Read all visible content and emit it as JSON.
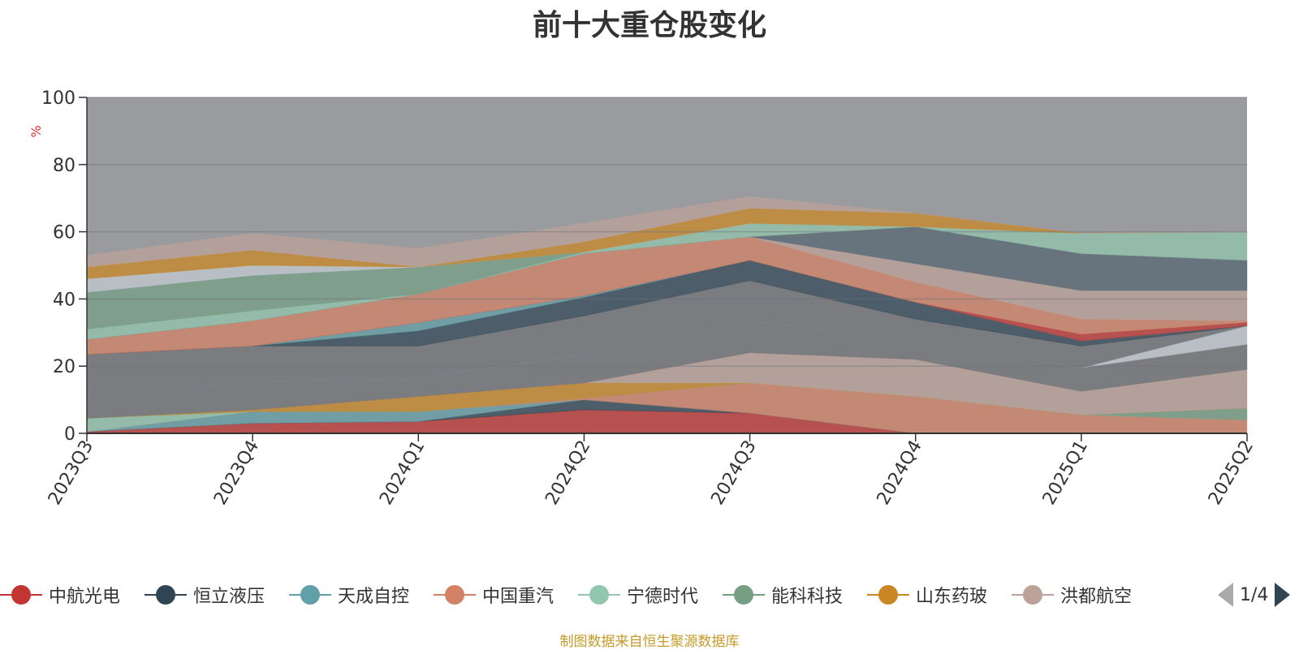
{
  "title": "前十大重仓股变化",
  "source": "制图数据来自恒生聚源数据库",
  "pager": {
    "text": "1/4"
  },
  "colors": {
    "axis": "#333333",
    "grid": "#6e7079",
    "background_area": "#9a9b9f",
    "ylabel": "#e52e2e"
  },
  "chart_data": {
    "type": "area",
    "title": "前十大重仓股变化",
    "ylabel": "%",
    "xlabel": "",
    "categories": [
      "2023Q3",
      "2023Q4",
      "2024Q1",
      "2024Q2",
      "2024Q3",
      "2024Q4",
      "2025Q1",
      "2025Q2"
    ],
    "ylim": [
      0,
      100
    ],
    "yticks": [
      0,
      20,
      40,
      60,
      80,
      100
    ],
    "grid": true,
    "stacked": true,
    "series_note": "Each band is one stock's holding share; legend shows first page of series",
    "series": [
      {
        "name": "中航光电",
        "color": "#c23531",
        "values": [
          0.5,
          3.0,
          3.5,
          7.0,
          6.0,
          0.0,
          0.0,
          0.0
        ]
      },
      {
        "name": "恒立液压",
        "color": "#2f4554",
        "values": [
          0.0,
          0.0,
          0.0,
          3.0,
          0.0,
          0.0,
          0.0,
          0.0
        ]
      },
      {
        "name": "天成自控",
        "color": "#61a0a8",
        "values": [
          0.0,
          3.5,
          3.0,
          0.0,
          0.0,
          0.0,
          0.0,
          0.0
        ]
      },
      {
        "name": "中国重汽",
        "color": "#d48265",
        "values": [
          0.0,
          0.0,
          0.0,
          0.5,
          9.0,
          11.0,
          5.5,
          4.0
        ]
      },
      {
        "name": "宁德时代",
        "color": "#91c7ae",
        "values": [
          4.0,
          0.0,
          0.0,
          0.0,
          0.0,
          0.0,
          0.0,
          0.0
        ]
      },
      {
        "name": "能科科技",
        "color": "#749f83",
        "values": [
          0.0,
          0.0,
          0.0,
          0.0,
          0.0,
          0.0,
          0.0,
          3.5
        ]
      },
      {
        "name": "山东药玻",
        "color": "#ca8622",
        "values": [
          0.0,
          0.5,
          4.5,
          4.5,
          0.0,
          0.0,
          0.0,
          0.0
        ]
      },
      {
        "name": "洪都航空",
        "color": "#bda29a",
        "values": [
          0.0,
          0.0,
          0.0,
          0.0,
          9.0,
          11.0,
          7.0,
          11.5
        ]
      },
      {
        "name": "",
        "color": "#6e7074",
        "values": [
          7.5,
          8.5,
          5.5,
          8.5,
          9.5,
          6.0,
          7.0,
          7.5
        ]
      },
      {
        "name": "",
        "color": "#546570",
        "values": [
          0.0,
          0.0,
          0.0,
          0.0,
          0.0,
          0.0,
          0.0,
          0.0
        ]
      },
      {
        "name": "",
        "color": "#c4ccd3",
        "values": [
          0.0,
          0.0,
          0.0,
          0.0,
          0.0,
          0.0,
          0.0,
          5.5
        ]
      },
      {
        "name": "",
        "color": "#d48265",
        "values": [
          0.0,
          0.0,
          0.0,
          0.0,
          0.0,
          0.0,
          0.0,
          0.0
        ]
      },
      {
        "name": "",
        "color": "#6e7074",
        "values": [
          11.5,
          10.5,
          9.5,
          11.5,
          12.0,
          6.0,
          6.5,
          0.0
        ]
      },
      {
        "name": "",
        "color": "#2f4554",
        "values": [
          0.0,
          0.0,
          4.5,
          5.5,
          6.0,
          5.0,
          1.5,
          0.0
        ]
      },
      {
        "name": "",
        "color": "#61a0a8",
        "values": [
          0.0,
          0.0,
          2.5,
          0.5,
          0.0,
          0.0,
          0.0,
          0.0
        ]
      },
      {
        "name": "",
        "color": "#c23531",
        "values": [
          0.0,
          0.0,
          0.0,
          0.0,
          0.0,
          0.0,
          2.0,
          1.0
        ]
      },
      {
        "name": "",
        "color": "#d48265",
        "values": [
          4.5,
          7.5,
          8.5,
          12.5,
          7.0,
          6.0,
          4.5,
          0.5
        ]
      },
      {
        "name": "",
        "color": "#bda29a",
        "values": [
          0.0,
          0.0,
          0.0,
          0.0,
          0.0,
          5.5,
          8.5,
          9.0
        ]
      },
      {
        "name": "",
        "color": "#546570",
        "values": [
          0.0,
          0.0,
          0.0,
          0.0,
          0.0,
          11.0,
          11.0,
          9.0
        ]
      },
      {
        "name": "",
        "color": "#91c7ae",
        "values": [
          3.0,
          3.0,
          0.0,
          0.5,
          4.0,
          0.0,
          6.0,
          8.5
        ]
      },
      {
        "name": "",
        "color": "#749f83",
        "values": [
          11.0,
          10.5,
          8.0,
          0.0,
          0.0,
          0.0,
          0.0,
          0.0
        ]
      },
      {
        "name": "",
        "color": "#c4ccd3",
        "values": [
          4.0,
          3.0,
          0.0,
          0.0,
          0.0,
          0.0,
          0.0,
          0.0
        ]
      },
      {
        "name": "",
        "color": "#ca8622",
        "values": [
          3.5,
          4.5,
          0.0,
          3.0,
          4.5,
          4.0,
          0.0,
          0.0
        ]
      },
      {
        "name": "",
        "color": "#c23531",
        "values": [
          0.0,
          0.0,
          0.0,
          0.0,
          0.0,
          0.0,
          0.0,
          0.0
        ]
      },
      {
        "name": "",
        "color": "#bda29a",
        "values": [
          3.5,
          5.0,
          5.5,
          5.5,
          3.5,
          0.0,
          0.0,
          0.0
        ]
      }
    ]
  }
}
